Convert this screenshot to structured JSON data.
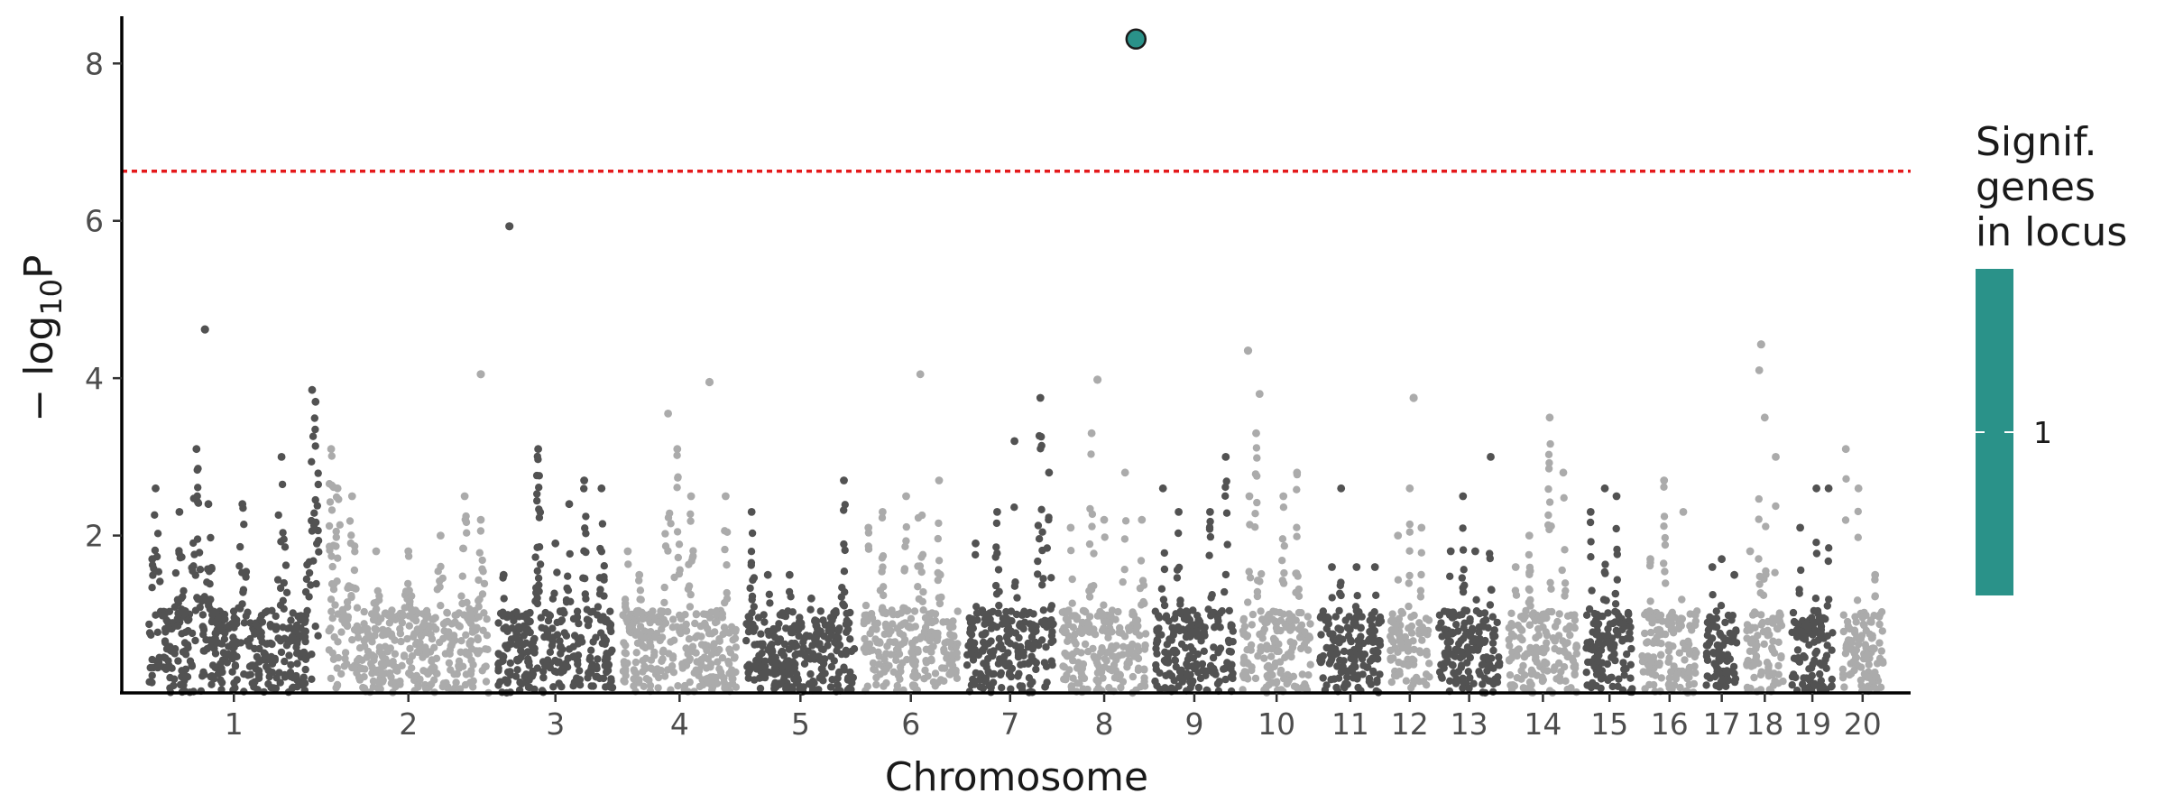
{
  "chart_data": {
    "type": "scatter",
    "title": "",
    "xlabel": "Chromosome",
    "ylabel": {
      "prefix": "− log",
      "subscript": "10",
      "suffix": "P"
    },
    "ylim": [
      0,
      8.6
    ],
    "y_ticks": [
      2,
      4,
      6,
      8
    ],
    "grid": false,
    "colors": {
      "dark": "#525252",
      "light": "#ababab",
      "highlight": "#2a9289",
      "threshold": "#e41a1c"
    },
    "significance_threshold": 6.63,
    "chromosomes": [
      {
        "label": "1",
        "len": 1.3,
        "shade": "dark"
      },
      {
        "label": "2",
        "len": 1.23,
        "shade": "light"
      },
      {
        "label": "3",
        "len": 0.88,
        "shade": "dark"
      },
      {
        "label": "4",
        "len": 0.88,
        "shade": "light"
      },
      {
        "label": "5",
        "len": 0.83,
        "shade": "dark"
      },
      {
        "label": "6",
        "len": 0.72,
        "shade": "light"
      },
      {
        "label": "7",
        "len": 0.66,
        "shade": "dark"
      },
      {
        "label": "8",
        "len": 0.64,
        "shade": "light"
      },
      {
        "label": "9",
        "len": 0.6,
        "shade": "dark"
      },
      {
        "label": "10",
        "len": 0.52,
        "shade": "light"
      },
      {
        "label": "11",
        "len": 0.47,
        "shade": "dark"
      },
      {
        "label": "12",
        "len": 0.3,
        "shade": "light"
      },
      {
        "label": "13",
        "len": 0.47,
        "shade": "dark"
      },
      {
        "label": "14",
        "len": 0.52,
        "shade": "light"
      },
      {
        "label": "15",
        "len": 0.36,
        "shade": "dark"
      },
      {
        "label": "16",
        "len": 0.42,
        "shade": "light"
      },
      {
        "label": "17",
        "len": 0.24,
        "shade": "dark"
      },
      {
        "label": "18",
        "len": 0.28,
        "shade": "light"
      },
      {
        "label": "19",
        "len": 0.31,
        "shade": "dark"
      },
      {
        "label": "20",
        "len": 0.32,
        "shade": "light"
      }
    ],
    "chromosome_peaks": [
      [
        [
          0.02,
          1.7
        ],
        [
          0.04,
          2.6
        ],
        [
          0.18,
          2.3
        ],
        [
          0.28,
          3.1
        ],
        [
          0.35,
          2.4
        ],
        [
          0.55,
          2.4
        ],
        [
          0.78,
          3.0
        ],
        [
          0.96,
          3.85
        ],
        [
          0.98,
          3.7
        ]
      ],
      [
        [
          0.02,
          3.1
        ],
        [
          0.06,
          2.6
        ],
        [
          0.15,
          2.5
        ],
        [
          0.3,
          1.8
        ],
        [
          0.5,
          1.8
        ],
        [
          0.7,
          2.0
        ],
        [
          0.85,
          2.5
        ],
        [
          0.95,
          2.2
        ]
      ],
      [
        [
          0.05,
          1.5
        ],
        [
          0.25,
          1.0
        ],
        [
          0.35,
          3.1
        ],
        [
          0.5,
          1.9
        ],
        [
          0.62,
          2.4
        ],
        [
          0.75,
          2.7
        ],
        [
          0.9,
          2.6
        ]
      ],
      [
        [
          0.05,
          1.8
        ],
        [
          0.15,
          1.5
        ],
        [
          0.4,
          3.55
        ],
        [
          0.48,
          3.1
        ],
        [
          0.6,
          2.5
        ],
        [
          0.9,
          2.5
        ]
      ],
      [
        [
          0.05,
          2.3
        ],
        [
          0.2,
          1.5
        ],
        [
          0.4,
          1.5
        ],
        [
          0.6,
          1.2
        ],
        [
          0.9,
          2.7
        ]
      ],
      [
        [
          0.05,
          2.1
        ],
        [
          0.2,
          2.3
        ],
        [
          0.45,
          2.5
        ],
        [
          0.6,
          4.05
        ],
        [
          0.8,
          2.7
        ]
      ],
      [
        [
          0.1,
          1.9
        ],
        [
          0.35,
          2.3
        ],
        [
          0.55,
          3.2
        ],
        [
          0.85,
          3.75
        ],
        [
          0.95,
          2.8
        ]
      ],
      [
        [
          0.1,
          2.1
        ],
        [
          0.35,
          3.3
        ],
        [
          0.5,
          2.2
        ],
        [
          0.75,
          2.8
        ],
        [
          0.95,
          2.2
        ]
      ],
      [
        [
          0.1,
          2.6
        ],
        [
          0.3,
          2.3
        ],
        [
          0.7,
          2.3
        ],
        [
          0.9,
          3.0
        ]
      ],
      [
        [
          0.1,
          2.5
        ],
        [
          0.2,
          3.3
        ],
        [
          0.25,
          3.8
        ],
        [
          0.6,
          2.5
        ],
        [
          0.8,
          2.8
        ]
      ],
      [
        [
          0.2,
          1.6
        ],
        [
          0.35,
          2.6
        ],
        [
          0.6,
          1.6
        ],
        [
          0.9,
          1.6
        ]
      ],
      [
        [
          0.2,
          2.0
        ],
        [
          0.5,
          2.6
        ],
        [
          0.8,
          2.1
        ]
      ],
      [
        [
          0.2,
          1.8
        ],
        [
          0.4,
          2.5
        ],
        [
          0.6,
          1.8
        ],
        [
          0.85,
          3.0
        ]
      ],
      [
        [
          0.1,
          1.6
        ],
        [
          0.3,
          2.0
        ],
        [
          0.6,
          3.5
        ],
        [
          0.8,
          2.8
        ]
      ],
      [
        [
          0.1,
          2.3
        ],
        [
          0.4,
          2.6
        ],
        [
          0.65,
          2.5
        ],
        [
          0.9,
          1.0
        ]
      ],
      [
        [
          0.15,
          1.7
        ],
        [
          0.4,
          2.7
        ],
        [
          0.75,
          2.3
        ]
      ],
      [
        [
          0.2,
          1.6
        ],
        [
          0.5,
          1.7
        ],
        [
          0.9,
          1.5
        ]
      ],
      [
        [
          0.1,
          1.8
        ],
        [
          0.35,
          4.1
        ],
        [
          0.5,
          3.5
        ],
        [
          0.8,
          3.0
        ]
      ],
      [
        [
          0.2,
          2.1
        ],
        [
          0.6,
          2.6
        ],
        [
          0.9,
          2.6
        ]
      ],
      [
        [
          0.1,
          3.1
        ],
        [
          0.4,
          2.6
        ],
        [
          0.8,
          1.5
        ]
      ]
    ],
    "notable_points": [
      {
        "chr": 1,
        "pos": 0.33,
        "y": 4.62
      },
      {
        "chr": 2,
        "pos": 0.95,
        "y": 4.05
      },
      {
        "chr": 3,
        "pos": 0.1,
        "y": 5.93
      },
      {
        "chr": 4,
        "pos": 0.76,
        "y": 3.95
      },
      {
        "chr": 8,
        "pos": 0.42,
        "y": 3.98
      },
      {
        "chr": 10,
        "pos": 0.08,
        "y": 4.35
      },
      {
        "chr": 12,
        "pos": 0.6,
        "y": 3.75
      },
      {
        "chr": 18,
        "pos": 0.4,
        "y": 4.43
      }
    ],
    "highlighted_points": [
      {
        "chr": 8,
        "pos": 0.88,
        "y": 8.31,
        "signif_genes": 1
      }
    ],
    "legend": {
      "title": [
        "Signif.",
        "genes",
        "in locus"
      ],
      "label": "1",
      "placement": "right"
    }
  }
}
